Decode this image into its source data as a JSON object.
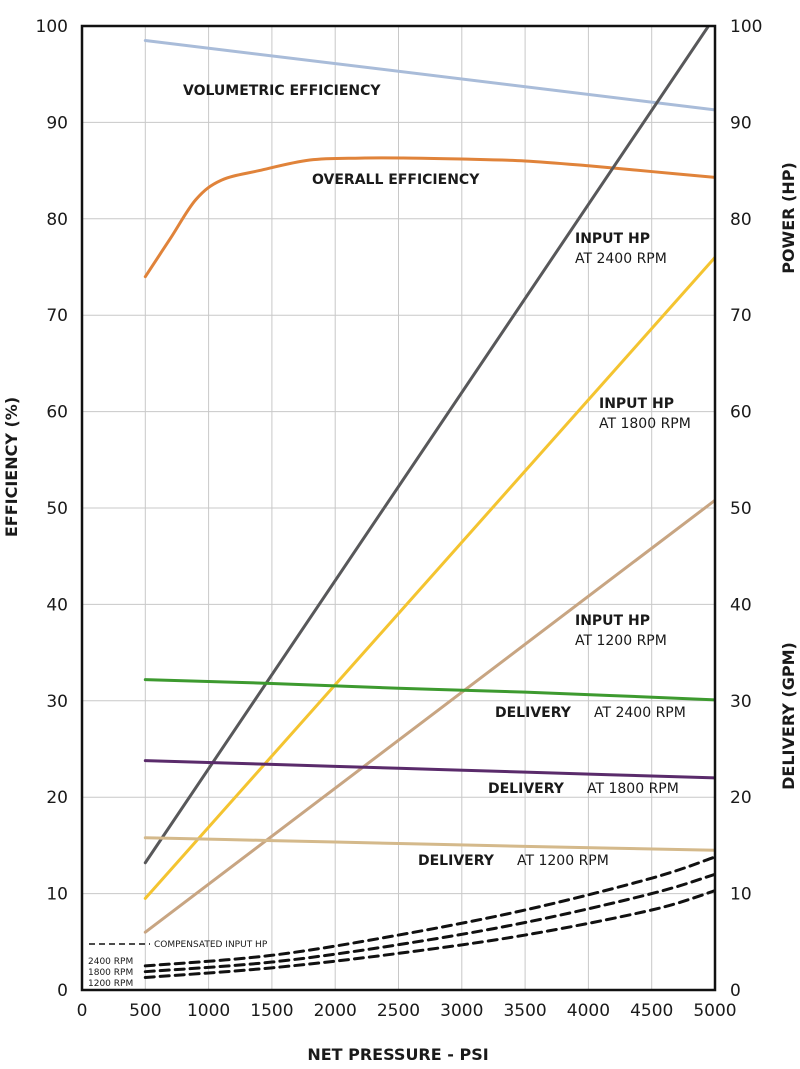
{
  "chart_data": {
    "type": "line",
    "xlabel": "NET PRESSURE - PSI",
    "ylabel_left": "EFFICIENCY (%)",
    "ylabel_right_top": "POWER (HP)",
    "ylabel_right_bottom": "DELIVERY (GPM)",
    "xlim": [
      0,
      5000
    ],
    "ylim": [
      0,
      100
    ],
    "x_ticks": [
      0,
      500,
      1000,
      1500,
      2000,
      2500,
      3000,
      3500,
      4000,
      4500,
      5000
    ],
    "y_ticks": [
      0,
      10,
      20,
      30,
      40,
      50,
      60,
      70,
      80,
      90,
      100
    ],
    "grid": true,
    "series": [
      {
        "key": "vol_eff",
        "name": "VOLUMETRIC EFFICIENCY",
        "color": "#a9bcd9",
        "dashed": false,
        "x": [
          500,
          5000
        ],
        "y": [
          98.5,
          91.3
        ]
      },
      {
        "key": "overall_eff",
        "name": "OVERALL EFFICIENCY",
        "color": "#e0833a",
        "dashed": false,
        "x": [
          500,
          700,
          900,
          1100,
          1400,
          1800,
          2200,
          2600,
          3000,
          3500,
          4000,
          4500,
          5000
        ],
        "y": [
          74,
          78,
          82,
          84,
          85,
          86.1,
          86.3,
          86.3,
          86.2,
          86,
          85.5,
          84.9,
          84.3
        ]
      },
      {
        "key": "hp_2400",
        "name": "INPUT HP AT 2400 RPM",
        "color": "#58585a",
        "dashed": false,
        "x": [
          500,
          5000
        ],
        "y": [
          13.2,
          101
        ]
      },
      {
        "key": "hp_1800",
        "name": "INPUT HP AT 1800 RPM",
        "color": "#f4c430",
        "dashed": false,
        "x": [
          500,
          5000
        ],
        "y": [
          9.5,
          76
        ]
      },
      {
        "key": "hp_1200",
        "name": "INPUT HP AT 1200 RPM",
        "color": "#c8a582",
        "dashed": false,
        "x": [
          500,
          5000
        ],
        "y": [
          6,
          50.8
        ]
      },
      {
        "key": "del_2400",
        "name": "DELIVERY AT 2400 RPM",
        "color": "#3d9a2f",
        "dashed": false,
        "x": [
          500,
          1500,
          2500,
          3500,
          5000
        ],
        "y": [
          32.2,
          31.8,
          31.3,
          30.9,
          30.1
        ]
      },
      {
        "key": "del_1800",
        "name": "DELIVERY AT 1800 RPM",
        "color": "#5a2b6b",
        "dashed": false,
        "x": [
          500,
          1500,
          2500,
          3500,
          5000
        ],
        "y": [
          23.8,
          23.4,
          23,
          22.6,
          22
        ]
      },
      {
        "key": "del_1200",
        "name": "DELIVERY AT 1200 RPM",
        "color": "#d4b98b",
        "dashed": false,
        "x": [
          500,
          1500,
          2500,
          3500,
          5000
        ],
        "y": [
          15.8,
          15.5,
          15.2,
          14.9,
          14.5
        ]
      },
      {
        "key": "comp_2400",
        "name": "COMPENSATED INPUT HP 2400 RPM",
        "color": "#111111",
        "dashed": true,
        "x": [
          500,
          1500,
          2500,
          3500,
          4500,
          5000
        ],
        "y": [
          2.5,
          3.6,
          5.7,
          8.3,
          11.6,
          13.8
        ]
      },
      {
        "key": "comp_1800",
        "name": "COMPENSATED INPUT HP 1800 RPM",
        "color": "#111111",
        "dashed": true,
        "x": [
          500,
          1500,
          2500,
          3500,
          4500,
          5000
        ],
        "y": [
          1.9,
          2.9,
          4.7,
          7,
          10,
          12
        ]
      },
      {
        "key": "comp_1200",
        "name": "COMPENSATED INPUT HP 1200 RPM",
        "color": "#111111",
        "dashed": true,
        "x": [
          500,
          1500,
          2500,
          3500,
          4500,
          5000
        ],
        "y": [
          1.3,
          2.3,
          3.8,
          5.7,
          8.3,
          10.3
        ]
      }
    ],
    "annotations": {
      "vol_eff": "VOLUMETRIC EFFICIENCY",
      "overall_eff": "OVERALL EFFICIENCY",
      "hp_2400_bold": "INPUT HP",
      "hp_2400_sub": "AT 2400 RPM",
      "hp_1800_bold": "INPUT HP",
      "hp_1800_sub": "AT 1800 RPM",
      "hp_1200_bold": "INPUT HP",
      "hp_1200_sub": "AT 1200 RPM",
      "del_2400_bold": "DELIVERY",
      "del_2400_sub": "AT 2400 RPM",
      "del_1800_bold": "DELIVERY",
      "del_1800_sub": "AT 1800 RPM",
      "del_1200_bold": "DELIVERY",
      "del_1200_sub": "AT 1200 RPM",
      "legend_title": "COMPENSATED INPUT HP",
      "legend_2400": "2400 RPM",
      "legend_1800": "1800 RPM",
      "legend_1200": "1200 RPM"
    }
  }
}
